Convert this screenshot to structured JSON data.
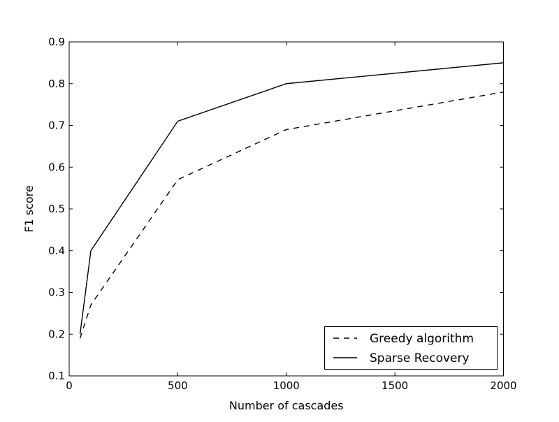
{
  "figure": {
    "background": "#ffffff",
    "foreground": "#000000"
  },
  "chart_data": {
    "type": "line",
    "title": "",
    "xlabel": "Number of cascades",
    "ylabel": "F1 score",
    "xlim": [
      0,
      2000
    ],
    "ylim": [
      0.1,
      0.9
    ],
    "x_ticks": [
      0,
      500,
      1000,
      1500,
      2000
    ],
    "x_tick_labels": [
      "0",
      "500",
      "1000",
      "1500",
      "2000"
    ],
    "y_ticks": [
      0.1,
      0.2,
      0.3,
      0.4,
      0.5,
      0.6,
      0.7,
      0.8,
      0.9
    ],
    "y_tick_labels": [
      "0.1",
      "0.2",
      "0.3",
      "0.4",
      "0.5",
      "0.6",
      "0.7",
      "0.8",
      "0.9"
    ],
    "grid": false,
    "legend_position": "lower right",
    "series": [
      {
        "name": "Greedy algorithm",
        "style": "dashed",
        "color": "#000000",
        "x": [
          50,
          100,
          500,
          1000,
          2000
        ],
        "y": [
          0.19,
          0.27,
          0.57,
          0.69,
          0.78
        ]
      },
      {
        "name": "Sparse Recovery",
        "style": "solid",
        "color": "#000000",
        "x": [
          50,
          100,
          500,
          1000,
          2000
        ],
        "y": [
          0.2,
          0.4,
          0.71,
          0.8,
          0.85
        ]
      }
    ]
  }
}
